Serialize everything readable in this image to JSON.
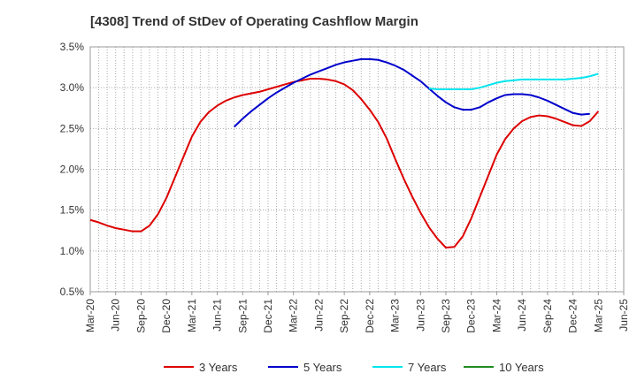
{
  "title": "[4308]  Trend of StDev of Operating Cashflow Margin",
  "chart_data": {
    "type": "line",
    "title": "[4308]  Trend of StDev of Operating Cashflow Margin",
    "xlabel": "",
    "ylabel": "",
    "x_tick_labels": [
      "Mar-20",
      "Jun-20",
      "Sep-20",
      "Dec-20",
      "Mar-21",
      "Jun-21",
      "Sep-21",
      "Dec-21",
      "Mar-22",
      "Jun-22",
      "Sep-22",
      "Dec-22",
      "Mar-23",
      "Jun-23",
      "Sep-23",
      "Dec-23",
      "Mar-24",
      "Jun-24",
      "Sep-24",
      "Dec-24",
      "Mar-25",
      "Jun-25"
    ],
    "y_tick_labels": [
      "0.5%",
      "1.0%",
      "1.5%",
      "2.0%",
      "2.5%",
      "3.0%",
      "3.5%"
    ],
    "ylim": [
      0.5,
      3.5
    ],
    "y_ticks": [
      0.5,
      1.0,
      1.5,
      2.0,
      2.5,
      3.0,
      3.5
    ],
    "grid": true,
    "legend_position": "bottom",
    "series": [
      {
        "name": "3 Years",
        "color": "#dd0000",
        "points": [
          [
            "Mar-20",
            1.38
          ],
          [
            "Apr-20",
            1.35
          ],
          [
            "May-20",
            1.31
          ],
          [
            "Jun-20",
            1.28
          ],
          [
            "Jul-20",
            1.26
          ],
          [
            "Aug-20",
            1.24
          ],
          [
            "Sep-20",
            1.24
          ],
          [
            "Oct-20",
            1.31
          ],
          [
            "Nov-20",
            1.45
          ],
          [
            "Dec-20",
            1.65
          ],
          [
            "Jan-21",
            1.9
          ],
          [
            "Feb-21",
            2.15
          ],
          [
            "Mar-21",
            2.4
          ],
          [
            "Apr-21",
            2.58
          ],
          [
            "May-21",
            2.7
          ],
          [
            "Jun-21",
            2.78
          ],
          [
            "Jul-21",
            2.84
          ],
          [
            "Aug-21",
            2.88
          ],
          [
            "Sep-21",
            2.91
          ],
          [
            "Oct-21",
            2.93
          ],
          [
            "Nov-21",
            2.95
          ],
          [
            "Dec-21",
            2.98
          ],
          [
            "Jan-22",
            3.01
          ],
          [
            "Feb-22",
            3.04
          ],
          [
            "Mar-22",
            3.07
          ],
          [
            "Apr-22",
            3.09
          ],
          [
            "May-22",
            3.11
          ],
          [
            "Jun-22",
            3.11
          ],
          [
            "Jul-22",
            3.1
          ],
          [
            "Aug-22",
            3.08
          ],
          [
            "Sep-22",
            3.04
          ],
          [
            "Oct-22",
            2.97
          ],
          [
            "Nov-22",
            2.86
          ],
          [
            "Dec-22",
            2.73
          ],
          [
            "Jan-23",
            2.58
          ],
          [
            "Feb-23",
            2.38
          ],
          [
            "Mar-23",
            2.13
          ],
          [
            "Apr-23",
            1.89
          ],
          [
            "May-23",
            1.67
          ],
          [
            "Jun-23",
            1.47
          ],
          [
            "Jul-23",
            1.29
          ],
          [
            "Aug-23",
            1.15
          ],
          [
            "Sep-23",
            1.04
          ],
          [
            "Oct-23",
            1.05
          ],
          [
            "Nov-23",
            1.18
          ],
          [
            "Dec-23",
            1.4
          ],
          [
            "Jan-24",
            1.66
          ],
          [
            "Feb-24",
            1.92
          ],
          [
            "Mar-24",
            2.18
          ],
          [
            "Apr-24",
            2.37
          ],
          [
            "May-24",
            2.5
          ],
          [
            "Jun-24",
            2.59
          ],
          [
            "Jul-24",
            2.64
          ],
          [
            "Aug-24",
            2.66
          ],
          [
            "Sep-24",
            2.65
          ],
          [
            "Oct-24",
            2.62
          ],
          [
            "Nov-24",
            2.58
          ],
          [
            "Dec-24",
            2.54
          ],
          [
            "Jan-25",
            2.53
          ],
          [
            "Feb-25",
            2.59
          ],
          [
            "Mar-25",
            2.71
          ]
        ]
      },
      {
        "name": "5 Years",
        "color": "#0000cc",
        "points": [
          [
            "Aug-21",
            2.52
          ],
          [
            "Sep-21",
            2.62
          ],
          [
            "Oct-21",
            2.71
          ],
          [
            "Nov-21",
            2.79
          ],
          [
            "Dec-21",
            2.87
          ],
          [
            "Jan-22",
            2.94
          ],
          [
            "Feb-22",
            3.0
          ],
          [
            "Mar-22",
            3.06
          ],
          [
            "Apr-22",
            3.11
          ],
          [
            "May-22",
            3.16
          ],
          [
            "Jun-22",
            3.2
          ],
          [
            "Jul-22",
            3.24
          ],
          [
            "Aug-22",
            3.28
          ],
          [
            "Sep-22",
            3.31
          ],
          [
            "Oct-22",
            3.33
          ],
          [
            "Nov-22",
            3.35
          ],
          [
            "Dec-22",
            3.35
          ],
          [
            "Jan-23",
            3.34
          ],
          [
            "Feb-23",
            3.31
          ],
          [
            "Mar-23",
            3.27
          ],
          [
            "Apr-23",
            3.22
          ],
          [
            "May-23",
            3.15
          ],
          [
            "Jun-23",
            3.08
          ],
          [
            "Jul-23",
            2.99
          ],
          [
            "Aug-23",
            2.9
          ],
          [
            "Sep-23",
            2.82
          ],
          [
            "Oct-23",
            2.76
          ],
          [
            "Nov-23",
            2.73
          ],
          [
            "Dec-23",
            2.73
          ],
          [
            "Jan-24",
            2.76
          ],
          [
            "Feb-24",
            2.82
          ],
          [
            "Mar-24",
            2.87
          ],
          [
            "Apr-24",
            2.91
          ],
          [
            "May-24",
            2.92
          ],
          [
            "Jun-24",
            2.92
          ],
          [
            "Jul-24",
            2.91
          ],
          [
            "Aug-24",
            2.88
          ],
          [
            "Sep-24",
            2.84
          ],
          [
            "Oct-24",
            2.79
          ],
          [
            "Nov-24",
            2.74
          ],
          [
            "Dec-24",
            2.69
          ],
          [
            "Jan-25",
            2.67
          ],
          [
            "Feb-25",
            2.68
          ]
        ]
      },
      {
        "name": "7 Years",
        "color": "#00e5ee",
        "points": [
          [
            "Jul-23",
            2.99
          ],
          [
            "Aug-23",
            2.98
          ],
          [
            "Sep-23",
            2.98
          ],
          [
            "Oct-23",
            2.98
          ],
          [
            "Nov-23",
            2.98
          ],
          [
            "Dec-23",
            2.98
          ],
          [
            "Jan-24",
            3.0
          ],
          [
            "Feb-24",
            3.03
          ],
          [
            "Mar-24",
            3.06
          ],
          [
            "Apr-24",
            3.08
          ],
          [
            "May-24",
            3.09
          ],
          [
            "Jun-24",
            3.1
          ],
          [
            "Jul-24",
            3.1
          ],
          [
            "Aug-24",
            3.1
          ],
          [
            "Sep-24",
            3.1
          ],
          [
            "Oct-24",
            3.1
          ],
          [
            "Nov-24",
            3.1
          ],
          [
            "Dec-24",
            3.11
          ],
          [
            "Jan-25",
            3.12
          ],
          [
            "Feb-25",
            3.14
          ],
          [
            "Mar-25",
            3.17
          ]
        ]
      },
      {
        "name": "10 Years",
        "color": "#228b22",
        "points": []
      }
    ]
  }
}
